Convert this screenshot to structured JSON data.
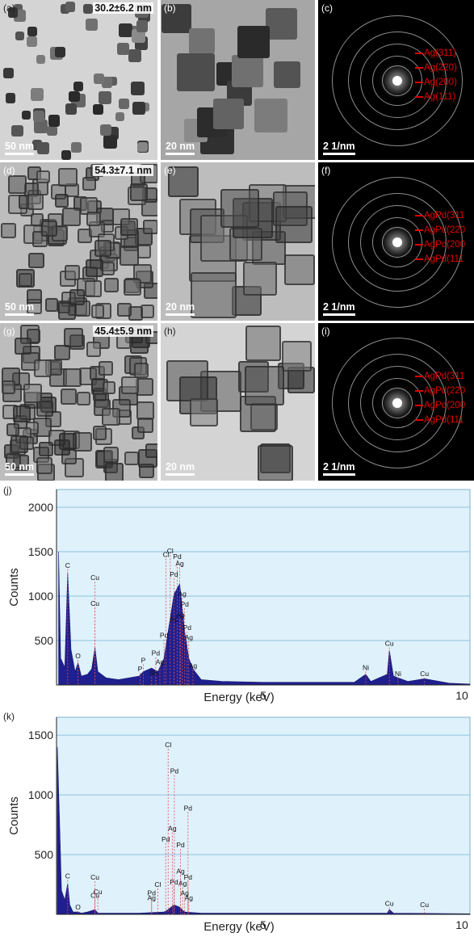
{
  "panels": [
    {
      "label": "(a)",
      "size": "30.2±6.2 nm",
      "scale": "50 nm"
    },
    {
      "label": "(b)",
      "scale": "20 nm"
    },
    {
      "label": "(c)",
      "scale": "2 1/nm",
      "rings": [
        "Ag(311)",
        "Ag(220)",
        "Ag(200)",
        "Ag(111)"
      ]
    },
    {
      "label": "(d)",
      "size": "54.3±7.1 nm",
      "scale": "50 nm"
    },
    {
      "label": "(e)",
      "scale": "20 nm"
    },
    {
      "label": "(f)",
      "scale": "2 1/nm",
      "rings": [
        "AgPd(311",
        "AgPd(220",
        "AgPd(200",
        "AgPd(111"
      ]
    },
    {
      "label": "(g)",
      "size": "45.4±5.9 nm",
      "scale": "50 nm"
    },
    {
      "label": "(h)",
      "scale": "20 nm"
    },
    {
      "label": "(i)",
      "scale": "2 1/nm",
      "rings": [
        "AgPd(311",
        "AgPd(220",
        "AgPd(200",
        "AgPd(111"
      ]
    }
  ],
  "chart_data": [
    {
      "type": "area",
      "panel_label": "(j)",
      "xlabel": "Energy (keV)",
      "ylabel": "Counts",
      "xlim": [
        0,
        10
      ],
      "ylim": [
        0,
        2200
      ],
      "yticks": [
        500,
        1000,
        1500,
        2000
      ],
      "xticks": [
        5,
        10
      ],
      "grid": true,
      "series": [
        {
          "values": [
            [
              0.05,
              1500
            ],
            [
              0.1,
              300
            ],
            [
              0.2,
              200
            ],
            [
              0.27,
              1270
            ],
            [
              0.35,
              400
            ],
            [
              0.45,
              150
            ],
            [
              0.52,
              250
            ],
            [
              0.6,
              100
            ],
            [
              0.75,
              120
            ],
            [
              0.85,
              180
            ],
            [
              0.93,
              420
            ],
            [
              1.0,
              150
            ],
            [
              1.2,
              80
            ],
            [
              1.5,
              60
            ],
            [
              2.0,
              100
            ],
            [
              2.1,
              150
            ],
            [
              2.3,
              190
            ],
            [
              2.45,
              150
            ],
            [
              2.6,
              300
            ],
            [
              2.7,
              600
            ],
            [
              2.84,
              1020
            ],
            [
              2.98,
              1140
            ],
            [
              3.1,
              600
            ],
            [
              3.2,
              300
            ],
            [
              3.3,
              180
            ],
            [
              3.5,
              60
            ],
            [
              4.0,
              40
            ],
            [
              5.0,
              30
            ],
            [
              6.0,
              30
            ],
            [
              7.2,
              30
            ],
            [
              7.48,
              120
            ],
            [
              7.6,
              40
            ],
            [
              8.0,
              120
            ],
            [
              8.05,
              390
            ],
            [
              8.15,
              100
            ],
            [
              8.5,
              40
            ],
            [
              8.9,
              70
            ],
            [
              9.5,
              20
            ],
            [
              10.0,
              10
            ]
          ]
        }
      ],
      "peak_labels": [
        "C",
        "O",
        "Cu",
        "Cu",
        "P",
        "P",
        "S",
        "S",
        "Pd",
        "Ag",
        "Pd",
        "Pd",
        "Cl",
        "Cl",
        "Pd",
        "Ag",
        "Pd",
        "Ag",
        "Pd",
        "Ag",
        "Pd",
        "Ag",
        "Ag",
        "Ni",
        "Cu",
        "Ni",
        "Cu"
      ]
    },
    {
      "type": "area",
      "panel_label": "(k)",
      "xlabel": "Energy (keV)",
      "ylabel": "Counts",
      "xlim": [
        0,
        10
      ],
      "ylim": [
        0,
        1650
      ],
      "yticks": [
        500,
        1000,
        1500
      ],
      "xticks": [
        5,
        10
      ],
      "grid": true,
      "series": [
        {
          "values": [
            [
              0.02,
              1400
            ],
            [
              0.08,
              700
            ],
            [
              0.12,
              200
            ],
            [
              0.2,
              120
            ],
            [
              0.27,
              260
            ],
            [
              0.32,
              80
            ],
            [
              0.4,
              20
            ],
            [
              0.52,
              20
            ],
            [
              0.6,
              10
            ],
            [
              0.75,
              20
            ],
            [
              0.93,
              40
            ],
            [
              1.0,
              10
            ],
            [
              2.0,
              10
            ],
            [
              2.6,
              20
            ],
            [
              2.7,
              40
            ],
            [
              2.84,
              80
            ],
            [
              2.98,
              60
            ],
            [
              3.1,
              20
            ],
            [
              3.5,
              10
            ],
            [
              8.0,
              10
            ],
            [
              8.05,
              40
            ],
            [
              8.15,
              10
            ],
            [
              8.9,
              8
            ],
            [
              10.0,
              5
            ]
          ]
        }
      ],
      "peak_labels": [
        "C",
        "O",
        "Cu",
        "Cu",
        "Cu",
        "Pd",
        "Ag",
        "Cl",
        "Cl",
        "Pd",
        "Pd",
        "Ag",
        "Pd",
        "Pd",
        "Ag",
        "Ag",
        "Pd",
        "Pd",
        "Ag",
        "Ag",
        "Cu",
        "Cu"
      ]
    }
  ]
}
